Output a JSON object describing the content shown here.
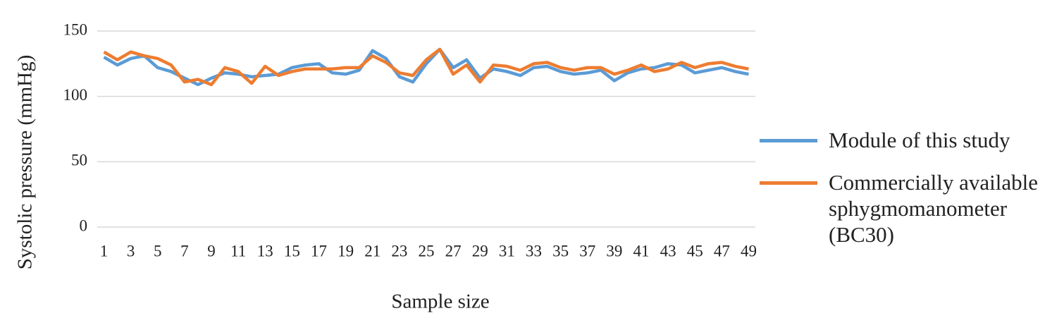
{
  "chart_data": {
    "type": "line",
    "y_label": "Systolic pressure (mmHg)",
    "x_label": "Sample size",
    "categories": [
      "1",
      null,
      "3",
      null,
      "5",
      null,
      "7",
      null,
      "9",
      null,
      "11",
      null,
      "13",
      null,
      "15",
      null,
      "17",
      null,
      "19",
      null,
      "21",
      null,
      "23",
      null,
      "25",
      null,
      "27",
      null,
      "29",
      null,
      "31",
      null,
      "33",
      null,
      "35",
      null,
      "37",
      null,
      "39",
      null,
      "41",
      null,
      "43",
      null,
      "45",
      null,
      "47",
      null,
      "49"
    ],
    "series": [
      {
        "name": "Module of this study",
        "color": "#5b9bd5",
        "values": [
          130,
          124,
          129,
          131,
          122,
          119,
          114,
          109,
          114,
          118,
          117,
          115,
          116,
          117,
          122,
          124,
          125,
          118,
          117,
          120,
          135,
          129,
          115,
          111,
          125,
          136,
          122,
          128,
          114,
          121,
          119,
          116,
          122,
          123,
          119,
          117,
          118,
          120,
          112,
          118,
          121,
          122,
          125,
          124,
          118,
          120,
          122,
          119,
          117
        ]
      },
      {
        "name": "Commercially available sphygmomanometer (BC30)",
        "color": "#ed7d31",
        "values": [
          134,
          128,
          134,
          131,
          129,
          124,
          111,
          113,
          109,
          122,
          119,
          110,
          123,
          116,
          119,
          121,
          121,
          121,
          122,
          122,
          131,
          126,
          118,
          116,
          128,
          136,
          117,
          124,
          111,
          124,
          123,
          120,
          125,
          126,
          122,
          120,
          122,
          122,
          117,
          120,
          124,
          119,
          121,
          126,
          122,
          125,
          126,
          123,
          121
        ]
      }
    ],
    "ylim": [
      0,
      150
    ],
    "yticks": [
      0,
      50,
      100,
      150
    ],
    "grid": true
  }
}
